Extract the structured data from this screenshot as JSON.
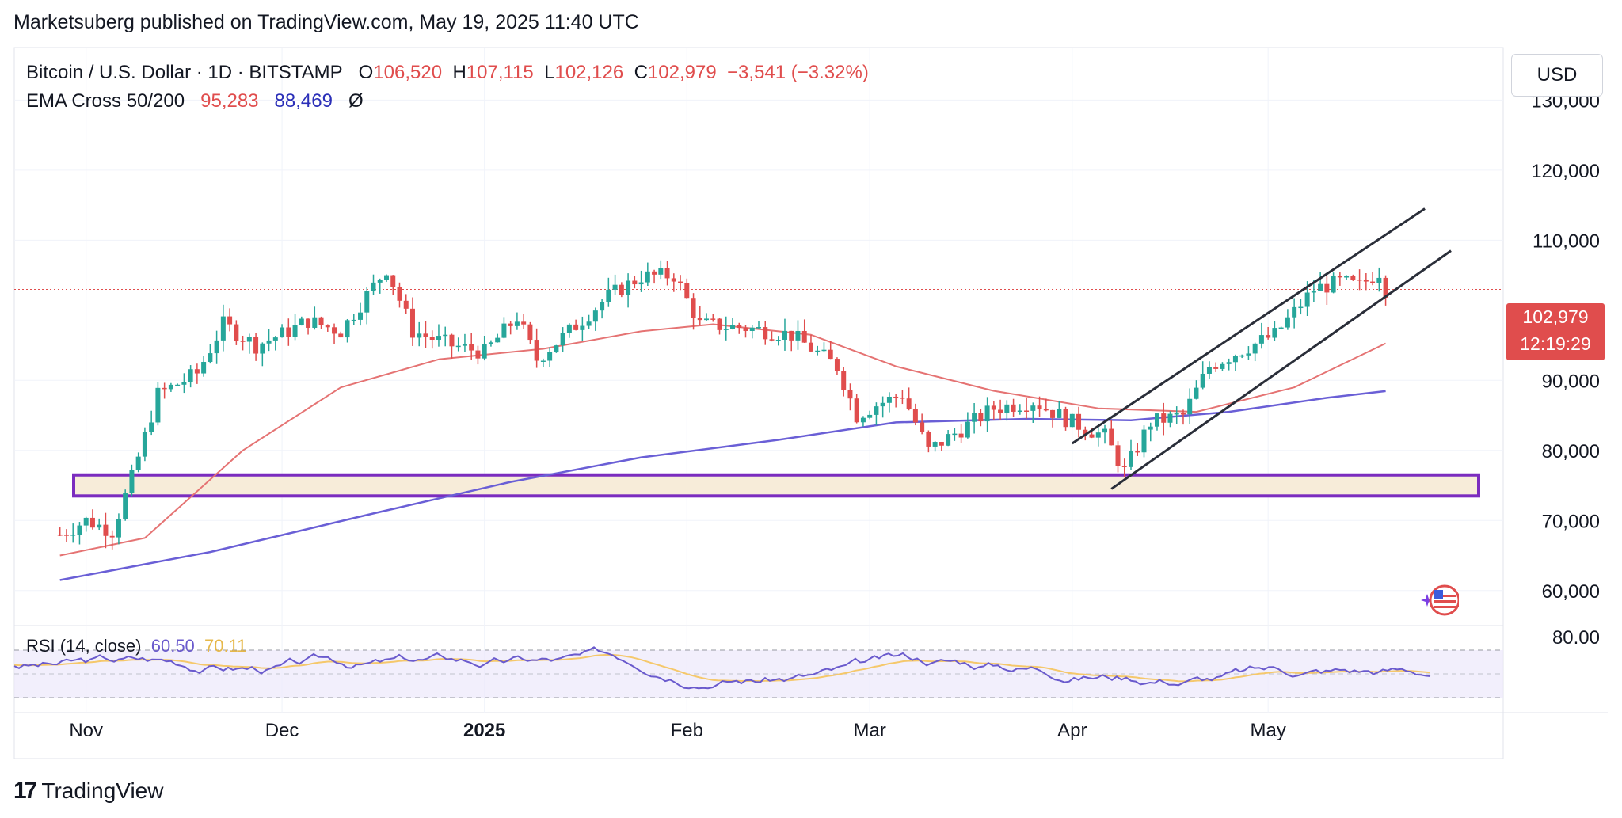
{
  "header": {
    "published": "Marketsuberg published on TradingView.com, May 19, 2025 11:40 UTC"
  },
  "legend": {
    "symbol": "Bitcoin / U.S. Dollar · 1D · BITSTAMP",
    "o_label": "O",
    "o_value": "106,520",
    "h_label": "H",
    "h_value": "107,115",
    "l_label": "L",
    "l_value": "102,126",
    "c_label": "C",
    "c_value": "102,979",
    "change": "−3,541 (−3.32%)",
    "ema_name": "EMA Cross 50/200",
    "ema50": "95,283",
    "ema200": "88,469",
    "ema_icon": "Ø"
  },
  "currency_button": "USD",
  "price_tag": {
    "price": "102,979",
    "countdown": "12:19:29"
  },
  "rsi": {
    "label": "RSI (14, close)",
    "value": "60.50",
    "ma_value": "70.11",
    "axis_label": "80.00"
  },
  "branding": "TradingView",
  "colors": {
    "up": "#26a69a",
    "down": "#e04d4d",
    "ema50": "#e57373",
    "ema200": "#6a5fd6",
    "zone": "#7b2cbf",
    "rsi": "#6a5acd",
    "rsi_ma": "#f5c86b"
  },
  "chart_data": {
    "type": "line",
    "title": "Bitcoin / U.S. Dollar · 1D · BITSTAMP",
    "y_axis_ticks": [
      "130,000",
      "120,000",
      "110,000",
      "90,000",
      "80,000",
      "70,000",
      "60,000"
    ],
    "x_axis_ticks": [
      "Nov",
      "Dec",
      "2025",
      "Feb",
      "Mar",
      "Apr",
      "May"
    ],
    "ylim": [
      55000,
      137500
    ],
    "series": [
      {
        "name": "Bitcoin / U.S. Dollar",
        "dates": [
          "2024-10-28",
          "2024-11-01",
          "2024-11-05",
          "2024-11-08",
          "2024-11-12",
          "2024-11-18",
          "2024-11-22",
          "2024-11-27",
          "2024-12-02",
          "2024-12-05",
          "2024-12-10",
          "2024-12-17",
          "2024-12-21",
          "2024-12-27",
          "2025-01-01",
          "2025-01-06",
          "2025-01-09",
          "2025-01-14",
          "2025-01-20",
          "2025-01-25",
          "2025-01-30",
          "2025-02-03",
          "2025-02-10",
          "2025-02-17",
          "2025-02-24",
          "2025-02-27",
          "2025-03-02",
          "2025-03-06",
          "2025-03-10",
          "2025-03-15",
          "2025-03-20",
          "2025-03-26",
          "2025-04-01",
          "2025-04-06",
          "2025-04-09",
          "2025-04-13",
          "2025-04-18",
          "2025-04-22",
          "2025-04-28",
          "2025-05-02",
          "2025-05-08",
          "2025-05-12",
          "2025-05-15",
          "2025-05-18",
          "2025-05-19"
        ],
        "values": [
          68000,
          70000,
          68500,
          76000,
          88000,
          91000,
          98000,
          95000,
          97000,
          98500,
          97000,
          106000,
          97000,
          95000,
          94000,
          99000,
          93000,
          97000,
          102000,
          104800,
          105000,
          98000,
          97500,
          96500,
          92000,
          85000,
          86500,
          88000,
          80000,
          83000,
          86000,
          87000,
          84000,
          82000,
          77000,
          84000,
          85000,
          92000,
          94800,
          96500,
          103000,
          104000,
          103500,
          105500,
          102979
        ]
      },
      {
        "name": "EMA 50",
        "dates": [
          "2024-10-28",
          "2024-11-10",
          "2024-11-25",
          "2024-12-10",
          "2024-12-25",
          "2025-01-10",
          "2025-01-25",
          "2025-02-05",
          "2025-02-20",
          "2025-03-05",
          "2025-03-20",
          "2025-04-05",
          "2025-04-20",
          "2025-05-05",
          "2025-05-19"
        ],
        "values": [
          65000,
          67500,
          80000,
          89000,
          93000,
          94500,
          97000,
          98000,
          96500,
          92000,
          88500,
          86000,
          85500,
          89000,
          95283
        ]
      },
      {
        "name": "EMA 200",
        "dates": [
          "2024-10-28",
          "2024-11-20",
          "2024-12-15",
          "2025-01-05",
          "2025-01-25",
          "2025-02-15",
          "2025-03-05",
          "2025-03-25",
          "2025-04-10",
          "2025-04-25",
          "2025-05-10",
          "2025-05-19"
        ],
        "values": [
          61500,
          65500,
          71000,
          75500,
          79000,
          81500,
          84000,
          84500,
          84300,
          85500,
          87500,
          88469
        ]
      }
    ],
    "annotations": {
      "support_zone": [
        73500,
        76500
      ],
      "channel_upper": [
        [
          "2025-04-01",
          81000
        ],
        [
          "2025-05-25",
          114500
        ]
      ],
      "channel_lower": [
        [
          "2025-04-07",
          74500
        ],
        [
          "2025-05-29",
          108500
        ]
      ],
      "last_price": 102979
    }
  }
}
